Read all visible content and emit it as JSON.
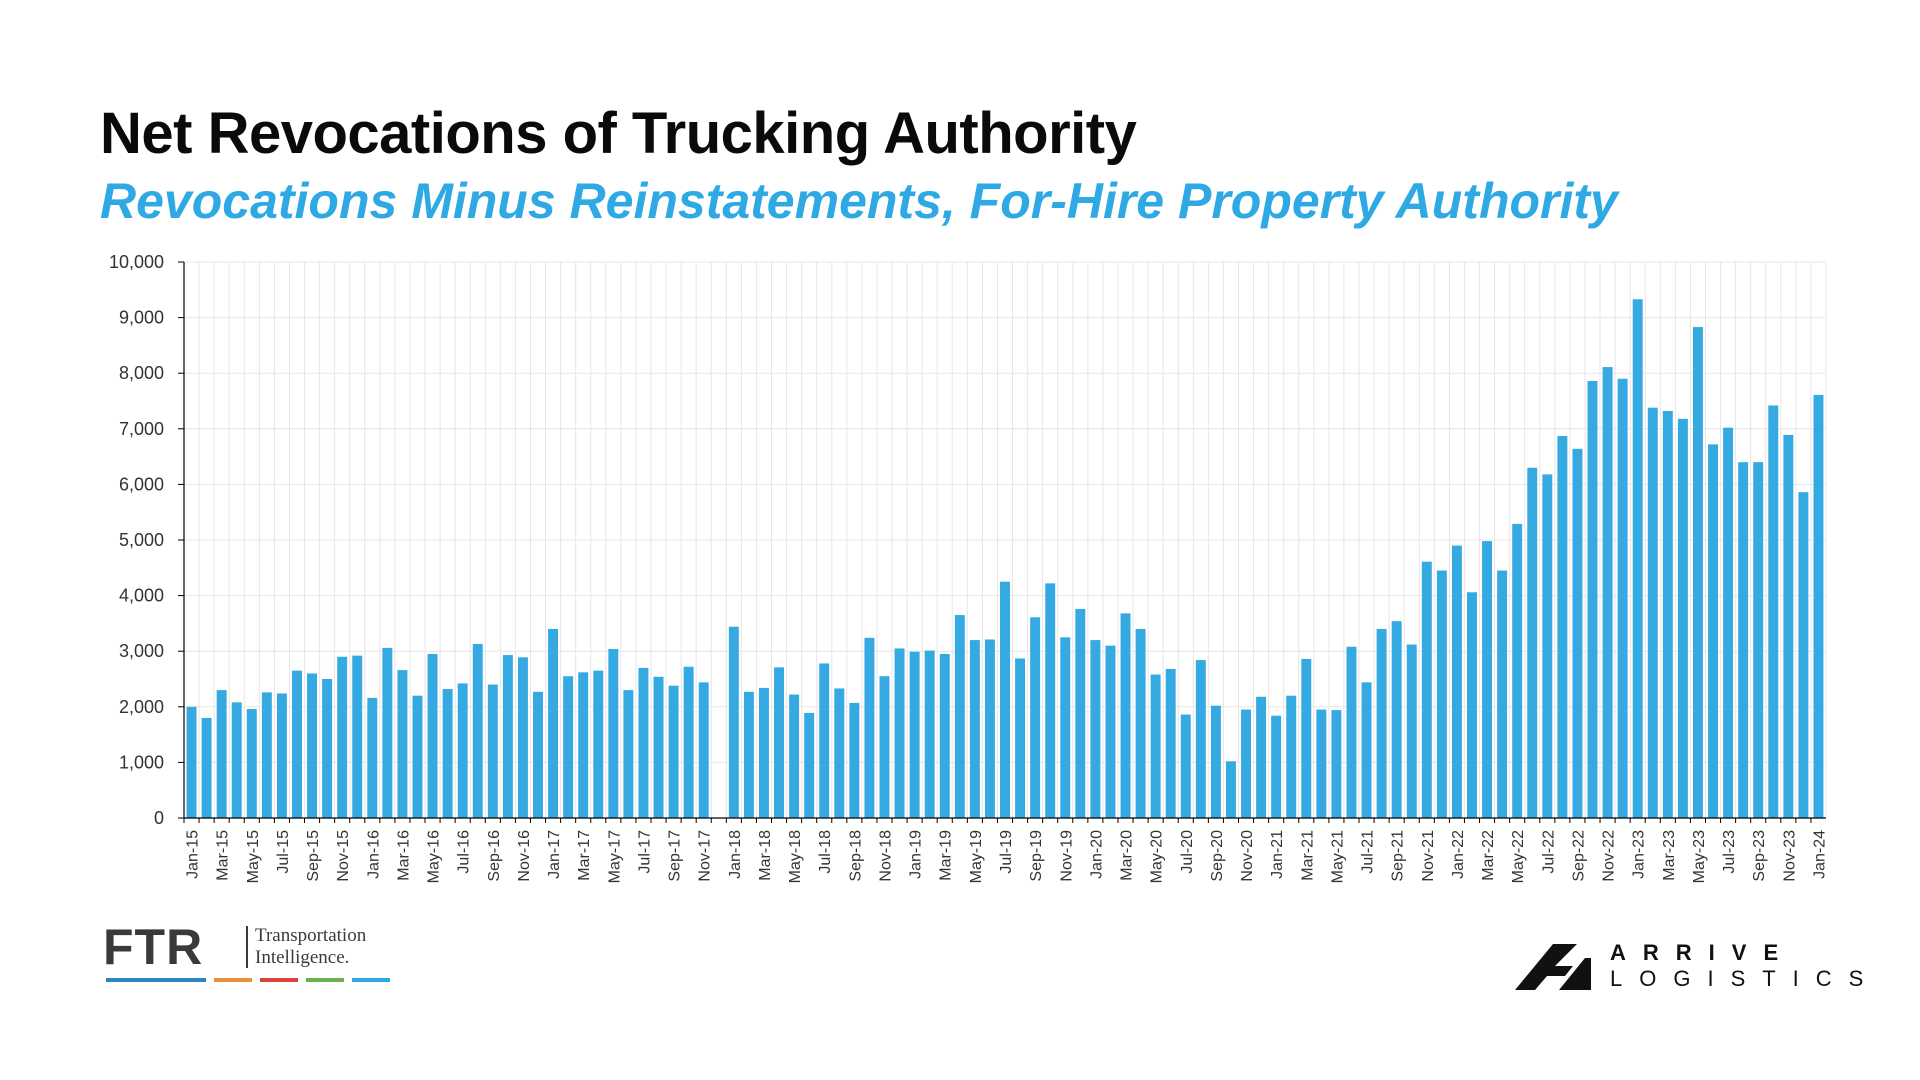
{
  "title": "Net Revocations of Trucking Authority",
  "subtitle": "Revocations Minus Reinstatements, For-Hire Property Authority",
  "colors": {
    "bar": "#35a9e1",
    "title": "#0a0a0a",
    "subtitle": "#2ea9e3",
    "grid": "#e6e6e6",
    "axis": "#000000",
    "ftr_stripes": [
      "#2e86c1",
      "#e8913a",
      "#d9443a",
      "#6ab04c",
      "#2ea9e3"
    ]
  },
  "chart_data": {
    "type": "bar",
    "title": "Net Revocations of Trucking Authority",
    "subtitle": "Revocations Minus Reinstatements, For-Hire Property Authority",
    "xlabel": "",
    "ylabel": "",
    "ylim": [
      0,
      10000
    ],
    "yticks": [
      "0",
      "1,000",
      "2,000",
      "3,000",
      "4,000",
      "5,000",
      "6,000",
      "7,000",
      "8,000",
      "9,000",
      "10,000"
    ],
    "ytick_values": [
      0,
      1000,
      2000,
      3000,
      4000,
      5000,
      6000,
      7000,
      8000,
      9000,
      10000
    ],
    "grid": true,
    "tick_label_every": 2,
    "categories": [
      "Jan-15",
      "Feb-15",
      "Mar-15",
      "Apr-15",
      "May-15",
      "Jun-15",
      "Jul-15",
      "Aug-15",
      "Sep-15",
      "Oct-15",
      "Nov-15",
      "Dec-15",
      "Jan-16",
      "Feb-16",
      "Mar-16",
      "Apr-16",
      "May-16",
      "Jun-16",
      "Jul-16",
      "Aug-16",
      "Sep-16",
      "Oct-16",
      "Nov-16",
      "Dec-16",
      "Jan-17",
      "Feb-17",
      "Mar-17",
      "Apr-17",
      "May-17",
      "Jun-17",
      "Jul-17",
      "Aug-17",
      "Sep-17",
      "Oct-17",
      "Nov-17",
      "Dec-17",
      "Jan-18",
      "Feb-18",
      "Mar-18",
      "Apr-18",
      "May-18",
      "Jun-18",
      "Jul-18",
      "Aug-18",
      "Sep-18",
      "Oct-18",
      "Nov-18",
      "Dec-18",
      "Jan-19",
      "Feb-19",
      "Mar-19",
      "Apr-19",
      "May-19",
      "Jun-19",
      "Jul-19",
      "Aug-19",
      "Sep-19",
      "Oct-19",
      "Nov-19",
      "Dec-19",
      "Jan-20",
      "Feb-20",
      "Mar-20",
      "Apr-20",
      "May-20",
      "Jun-20",
      "Jul-20",
      "Aug-20",
      "Sep-20",
      "Oct-20",
      "Nov-20",
      "Dec-20",
      "Jan-21",
      "Feb-21",
      "Mar-21",
      "Apr-21",
      "May-21",
      "Jun-21",
      "Jul-21",
      "Aug-21",
      "Sep-21",
      "Oct-21",
      "Nov-21",
      "Dec-21",
      "Jan-22",
      "Feb-22",
      "Mar-22",
      "Apr-22",
      "May-22",
      "Jun-22",
      "Jul-22",
      "Aug-22",
      "Sep-22",
      "Oct-22",
      "Nov-22",
      "Dec-22",
      "Jan-23",
      "Feb-23",
      "Mar-23",
      "Apr-23",
      "May-23",
      "Jun-23",
      "Jul-23",
      "Aug-23",
      "Sep-23",
      "Oct-23",
      "Nov-23",
      "Dec-23",
      "Jan-24"
    ],
    "values": [
      2000,
      1800,
      2300,
      2080,
      1960,
      2260,
      2240,
      2650,
      2600,
      2500,
      2900,
      2920,
      2160,
      3060,
      2660,
      2200,
      2950,
      2320,
      2420,
      3130,
      2400,
      2930,
      2890,
      2270,
      3400,
      2550,
      2620,
      2650,
      3040,
      2300,
      2700,
      2540,
      2380,
      2720,
      2440,
      0,
      3440,
      2270,
      2340,
      2710,
      2220,
      1890,
      2780,
      2330,
      2070,
      3240,
      2550,
      3050,
      2990,
      3010,
      2950,
      3650,
      3200,
      3210,
      4250,
      2870,
      3610,
      4220,
      3250,
      3760,
      3200,
      3100,
      3680,
      3400,
      2580,
      2680,
      1860,
      2840,
      2020,
      1020,
      1950,
      2180,
      1840,
      2200,
      2860,
      1950,
      1940,
      3080,
      2440,
      3400,
      3540,
      3120,
      4610,
      4450,
      4900,
      4060,
      4980,
      4450,
      5290,
      6300,
      6180,
      6870,
      6640,
      7860,
      8110,
      7900,
      9330,
      7380,
      7320,
      7180,
      8830,
      6720,
      7020,
      6400,
      6400,
      7420,
      6890,
      5860,
      7610
    ]
  },
  "logos": {
    "ftr_letters": "FTR",
    "ftr_tagline_line1": "Transportation",
    "ftr_tagline_line2": "Intelligence.",
    "arrive_word1": "ARRIVE",
    "arrive_word2": "LOGISTICS"
  }
}
